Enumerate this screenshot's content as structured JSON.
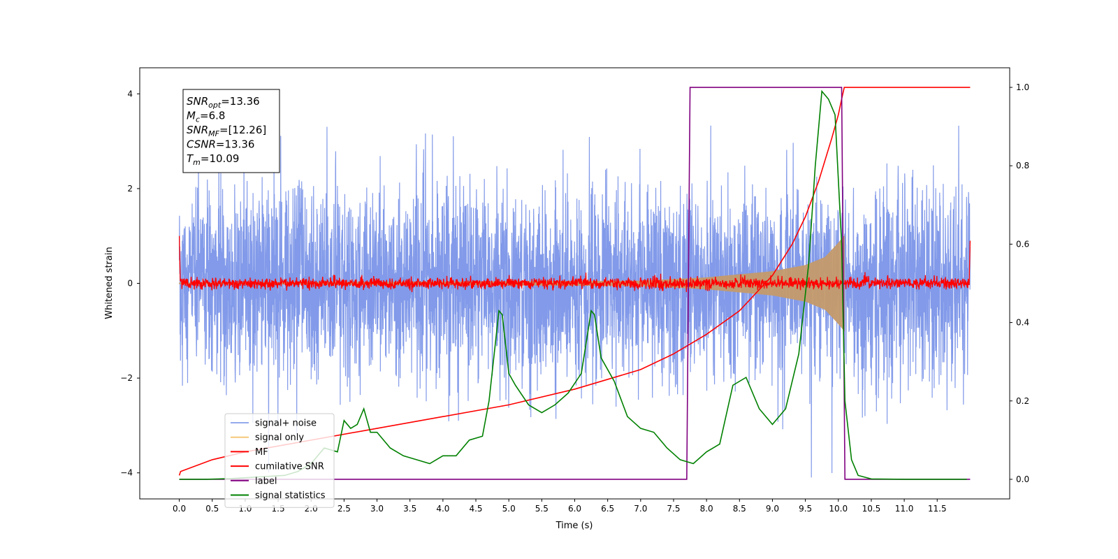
{
  "chart_data": {
    "type": "line",
    "title": "",
    "xlabel": "Time (s)",
    "ylabel": "Whitened strain",
    "xlim": [
      -0.6,
      12.6
    ],
    "ylim": [
      -4.55,
      4.55
    ],
    "y2lim": [
      -0.05,
      1.05
    ],
    "x_ticks": [
      "0.0",
      "0.5",
      "1.0",
      "1.5",
      "2.0",
      "2.5",
      "3.0",
      "3.5",
      "4.0",
      "4.5",
      "5.0",
      "5.5",
      "6.0",
      "6.5",
      "7.0",
      "7.5",
      "8.0",
      "8.5",
      "9.0",
      "9.5",
      "10.0",
      "10.5",
      "11.0",
      "11.5"
    ],
    "y_ticks": [
      "−4",
      "−2",
      "0",
      "2",
      "4"
    ],
    "y2_ticks": [
      "0.0",
      "0.2",
      "0.4",
      "0.6",
      "0.8",
      "1.0"
    ],
    "grid": false,
    "legend_position": "lower-left",
    "annotation": [
      {
        "sym": "SNR",
        "sub": "opt",
        "value": "=13.36"
      },
      {
        "sym": "M",
        "sub": "c",
        "value": "=6.8"
      },
      {
        "sym": "SNR",
        "sub": "MF",
        "value": "=[12.26]"
      },
      {
        "sym": "CSNR",
        "sub": "",
        "value": "=13.36"
      },
      {
        "sym": "T",
        "sub": "m",
        "value": "=10.09"
      }
    ],
    "series": [
      {
        "name": "signal+ noise",
        "color": "#7b95e8",
        "axis": "left",
        "kind": "noise",
        "x_range": [
          0,
          12
        ],
        "std": 1.0,
        "max_abs": 4.1
      },
      {
        "name": "signal only",
        "color": "#f5c97a",
        "axis": "left",
        "kind": "chirp",
        "x_range": [
          0,
          10.09
        ],
        "amplitude_envelope": [
          [
            0,
            0.01
          ],
          [
            7.0,
            0.05
          ],
          [
            8.0,
            0.12
          ],
          [
            9.0,
            0.25
          ],
          [
            9.5,
            0.38
          ],
          [
            9.8,
            0.55
          ],
          [
            10.0,
            0.85
          ],
          [
            10.09,
            1.0
          ]
        ]
      },
      {
        "name": "MF",
        "color": "#ff0000",
        "axis": "left",
        "kind": "mf",
        "x_range": [
          0,
          12
        ],
        "std": 0.06,
        "edge_values": [
          1.0,
          0.9
        ]
      },
      {
        "name": "cumilative SNR",
        "color": "#ff0000",
        "axis": "right",
        "kind": "line",
        "x": [
          0,
          0.02,
          0.5,
          1.0,
          2.0,
          3.0,
          4.0,
          5.0,
          6.0,
          7.0,
          7.5,
          8.0,
          8.5,
          9.0,
          9.3,
          9.5,
          9.7,
          9.9,
          10.0,
          10.05,
          10.09,
          12.0
        ],
        "y": [
          0.01,
          0.02,
          0.05,
          0.07,
          0.1,
          0.13,
          0.16,
          0.19,
          0.23,
          0.28,
          0.32,
          0.37,
          0.43,
          0.52,
          0.6,
          0.67,
          0.76,
          0.87,
          0.93,
          0.97,
          1.0,
          1.0
        ]
      },
      {
        "name": "label",
        "color": "#800080",
        "axis": "right",
        "kind": "line",
        "x": [
          0,
          7.7,
          7.75,
          10.05,
          10.1,
          12.0
        ],
        "y": [
          0,
          0,
          1,
          1,
          0,
          0
        ]
      },
      {
        "name": "signal statistics",
        "color": "#008000",
        "axis": "right",
        "kind": "line",
        "x": [
          0,
          0.2,
          0.4,
          0.6,
          0.8,
          1.0,
          1.2,
          1.4,
          1.6,
          1.8,
          2.0,
          2.2,
          2.4,
          2.5,
          2.6,
          2.7,
          2.8,
          2.9,
          3.0,
          3.2,
          3.4,
          3.6,
          3.8,
          4.0,
          4.2,
          4.4,
          4.6,
          4.7,
          4.85,
          4.9,
          5.0,
          5.1,
          5.3,
          5.5,
          5.7,
          5.9,
          6.1,
          6.25,
          6.3,
          6.4,
          6.6,
          6.8,
          7.0,
          7.2,
          7.4,
          7.6,
          7.8,
          8.0,
          8.2,
          8.4,
          8.6,
          8.8,
          9.0,
          9.2,
          9.4,
          9.55,
          9.65,
          9.75,
          9.85,
          9.95,
          10.05,
          10.1,
          10.2,
          10.3,
          10.5,
          11.0,
          11.5,
          11.95
        ],
        "y": [
          0.0,
          0.0,
          0.0,
          0.001,
          0.002,
          0.004,
          0.006,
          0.008,
          0.01,
          0.02,
          0.04,
          0.08,
          0.07,
          0.15,
          0.13,
          0.14,
          0.18,
          0.12,
          0.12,
          0.08,
          0.06,
          0.05,
          0.04,
          0.06,
          0.06,
          0.1,
          0.11,
          0.2,
          0.43,
          0.42,
          0.27,
          0.24,
          0.19,
          0.17,
          0.19,
          0.22,
          0.27,
          0.43,
          0.42,
          0.31,
          0.25,
          0.16,
          0.13,
          0.12,
          0.08,
          0.05,
          0.04,
          0.07,
          0.09,
          0.24,
          0.26,
          0.18,
          0.14,
          0.18,
          0.32,
          0.55,
          0.8,
          0.99,
          0.97,
          0.93,
          0.6,
          0.2,
          0.05,
          0.01,
          0.001,
          0.0,
          0.0,
          0.0
        ]
      }
    ]
  }
}
